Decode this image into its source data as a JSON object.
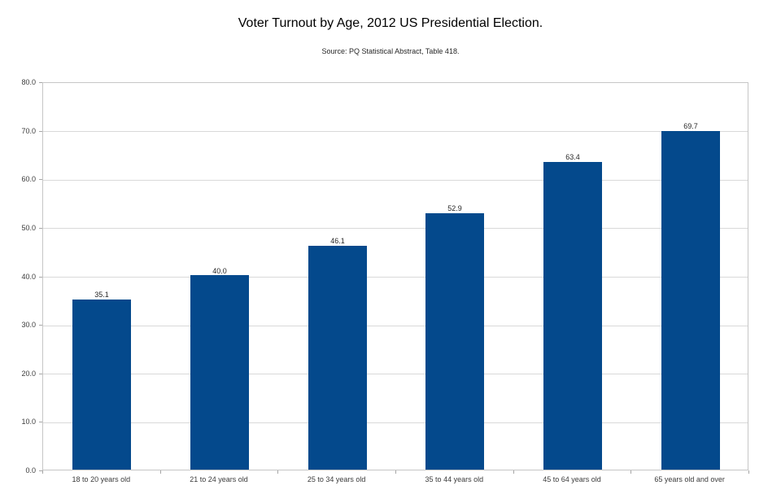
{
  "chart_data": {
    "type": "bar",
    "title": "Voter Turnout by Age, 2012 US Presidential Election.",
    "subtitle": "Source: PQ Statistical Abstract, Table 418.",
    "categories": [
      "18 to 20 years old",
      "21 to 24 years old",
      "25 to 34 years old",
      "35 to 44 years old",
      "45 to 64 years old",
      "65 years old and over"
    ],
    "values": [
      35.1,
      40.0,
      46.1,
      52.9,
      63.4,
      69.7
    ],
    "value_label_decimals": 1,
    "xlabel": "",
    "ylabel": "",
    "ylim": [
      0,
      80
    ],
    "ytick_step": 10,
    "ytick_decimals": 1,
    "grid": "horizontal",
    "legend": "none",
    "colors": {
      "bar": "#04498c",
      "gridline": "#d9d9d9",
      "plot_border": "#c6c6c6",
      "tick": "#a6a6a6",
      "axis_text": "#3b3b3b",
      "title_text": "#000000",
      "background": "#ffffff"
    }
  }
}
